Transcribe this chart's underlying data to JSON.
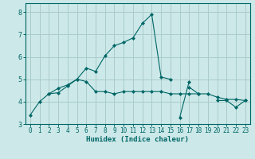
{
  "xlabel": "Humidex (Indice chaleur)",
  "background_color": "#cce8e8",
  "grid_color": "#aacccc",
  "line_color": "#006666",
  "xlim": [
    -0.5,
    23.5
  ],
  "ylim": [
    3.0,
    8.4
  ],
  "yticks": [
    3,
    4,
    5,
    6,
    7,
    8
  ],
  "xticks": [
    0,
    1,
    2,
    3,
    4,
    5,
    6,
    7,
    8,
    9,
    10,
    11,
    12,
    13,
    14,
    15,
    16,
    17,
    18,
    19,
    20,
    21,
    22,
    23
  ],
  "series": [
    [
      3.4,
      4.0,
      4.35,
      4.4,
      4.7,
      5.0,
      4.9,
      4.45,
      4.45,
      4.35,
      4.45,
      4.45,
      4.45,
      4.45,
      4.45,
      4.35,
      4.35,
      4.35,
      4.35,
      4.35,
      4.2,
      4.1,
      4.1,
      4.05
    ],
    [
      null,
      null,
      4.35,
      4.6,
      4.75,
      5.0,
      5.5,
      5.35,
      6.05,
      6.5,
      6.65,
      6.85,
      7.5,
      7.9,
      5.1,
      5.0,
      null,
      null,
      null,
      null,
      null,
      null,
      null,
      null
    ],
    [
      null,
      null,
      null,
      null,
      null,
      null,
      null,
      null,
      null,
      null,
      null,
      null,
      null,
      null,
      null,
      null,
      3.3,
      4.9,
      null,
      null,
      null,
      null,
      null,
      null
    ],
    [
      null,
      null,
      null,
      null,
      null,
      null,
      null,
      null,
      null,
      null,
      null,
      null,
      null,
      null,
      null,
      null,
      null,
      4.65,
      4.35,
      null,
      null,
      null,
      null,
      null
    ],
    [
      null,
      null,
      null,
      null,
      null,
      null,
      null,
      null,
      null,
      null,
      null,
      null,
      null,
      null,
      null,
      null,
      null,
      null,
      null,
      null,
      4.05,
      4.05,
      3.75,
      4.05
    ]
  ]
}
